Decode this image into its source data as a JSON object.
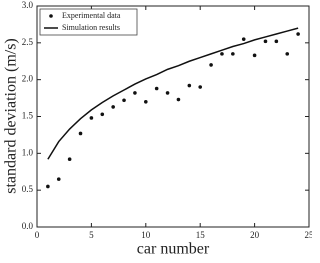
{
  "chart_data": {
    "type": "scatter-line",
    "xlabel": "car number",
    "ylabel": "standard deviation (m/s)",
    "xlim": [
      0,
      25
    ],
    "xticks": [
      0,
      5,
      10,
      15,
      20,
      25
    ],
    "ylim": [
      0,
      3
    ],
    "yticks": [
      {
        "value": 0,
        "label": "0.0"
      },
      0.5,
      {
        "value": 1,
        "label": "1.0"
      },
      1.5,
      {
        "value": 2,
        "label": "2.0"
      },
      2.5,
      {
        "value": 3,
        "label": "3.0"
      }
    ],
    "legend": "upper left",
    "series": [
      {
        "name": "Experimental data",
        "mode": "markers",
        "color": "#111111",
        "x": [
          1,
          2,
          3,
          4,
          5,
          6,
          7,
          8,
          9,
          10,
          11,
          12,
          13,
          14,
          15,
          16,
          17,
          18,
          19,
          20,
          21,
          22,
          23,
          24
        ],
        "values": [
          0.55,
          0.65,
          0.92,
          1.27,
          1.48,
          1.53,
          1.63,
          1.72,
          1.82,
          1.7,
          1.88,
          1.82,
          1.73,
          1.92,
          1.9,
          2.2,
          2.35,
          2.35,
          2.55,
          2.33,
          2.52,
          2.52,
          2.35,
          2.62
        ]
      },
      {
        "name": "Simulation results",
        "mode": "line",
        "color": "#111111",
        "x": [
          1,
          2,
          3,
          4,
          5,
          6,
          7,
          8,
          9,
          10,
          11,
          12,
          13,
          14,
          15,
          16,
          17,
          18,
          19,
          20,
          21,
          22,
          23,
          24
        ],
        "values": [
          0.92,
          1.16,
          1.33,
          1.47,
          1.59,
          1.69,
          1.78,
          1.86,
          1.94,
          2.01,
          2.07,
          2.14,
          2.19,
          2.25,
          2.3,
          2.35,
          2.4,
          2.45,
          2.49,
          2.54,
          2.58,
          2.62,
          2.66,
          2.7
        ]
      }
    ]
  }
}
